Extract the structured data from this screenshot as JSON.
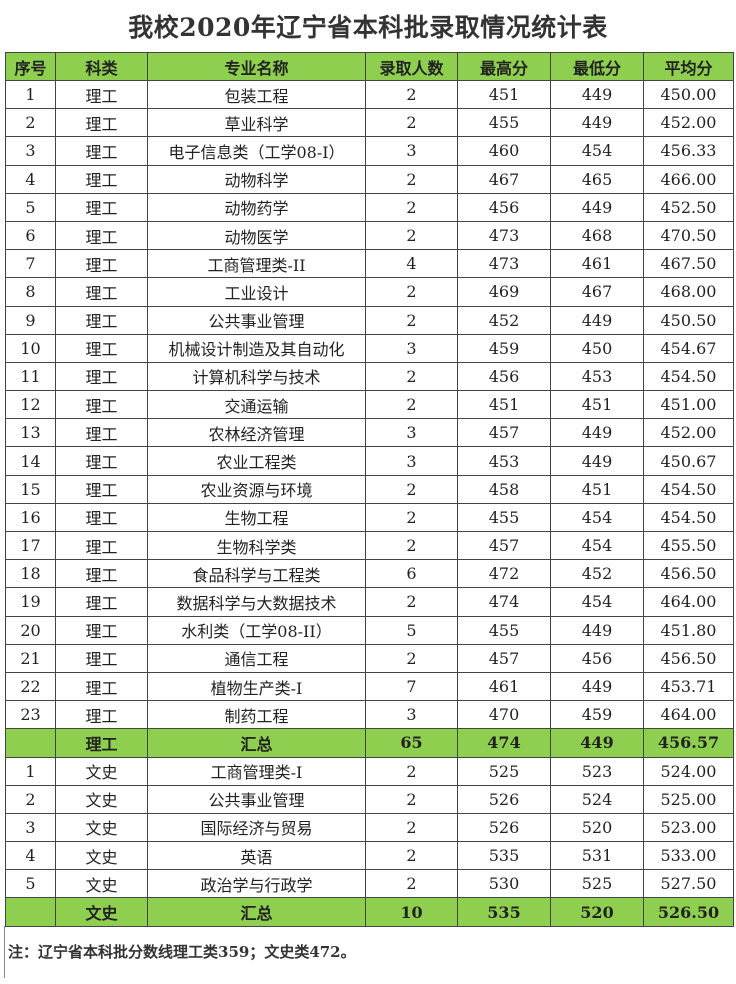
{
  "title": "我校2020年辽宁省本科批录取情况统计表",
  "colors": {
    "header_bg": "#8fcf4f",
    "summary_bg": "#8fcf4f"
  },
  "columns": [
    "序号",
    "科类",
    "专业名称",
    "录取人数",
    "最高分",
    "最低分",
    "平均分"
  ],
  "rows": [
    {
      "no": "1",
      "cat": "理工",
      "major": "包装工程",
      "count": "2",
      "max": "451",
      "min": "449",
      "avg": "450.00"
    },
    {
      "no": "2",
      "cat": "理工",
      "major": "草业科学",
      "count": "2",
      "max": "455",
      "min": "449",
      "avg": "452.00"
    },
    {
      "no": "3",
      "cat": "理工",
      "major": "电子信息类（工学08-I）",
      "count": "3",
      "max": "460",
      "min": "454",
      "avg": "456.33"
    },
    {
      "no": "4",
      "cat": "理工",
      "major": "动物科学",
      "count": "2",
      "max": "467",
      "min": "465",
      "avg": "466.00"
    },
    {
      "no": "5",
      "cat": "理工",
      "major": "动物药学",
      "count": "2",
      "max": "456",
      "min": "449",
      "avg": "452.50"
    },
    {
      "no": "6",
      "cat": "理工",
      "major": "动物医学",
      "count": "2",
      "max": "473",
      "min": "468",
      "avg": "470.50"
    },
    {
      "no": "7",
      "cat": "理工",
      "major": "工商管理类-II",
      "count": "4",
      "max": "473",
      "min": "461",
      "avg": "467.50"
    },
    {
      "no": "8",
      "cat": "理工",
      "major": "工业设计",
      "count": "2",
      "max": "469",
      "min": "467",
      "avg": "468.00"
    },
    {
      "no": "9",
      "cat": "理工",
      "major": "公共事业管理",
      "count": "2",
      "max": "452",
      "min": "449",
      "avg": "450.50"
    },
    {
      "no": "10",
      "cat": "理工",
      "major": "机械设计制造及其自动化",
      "count": "3",
      "max": "459",
      "min": "450",
      "avg": "454.67"
    },
    {
      "no": "11",
      "cat": "理工",
      "major": "计算机科学与技术",
      "count": "2",
      "max": "456",
      "min": "453",
      "avg": "454.50"
    },
    {
      "no": "12",
      "cat": "理工",
      "major": "交通运输",
      "count": "2",
      "max": "451",
      "min": "451",
      "avg": "451.00"
    },
    {
      "no": "13",
      "cat": "理工",
      "major": "农林经济管理",
      "count": "3",
      "max": "457",
      "min": "449",
      "avg": "452.00"
    },
    {
      "no": "14",
      "cat": "理工",
      "major": "农业工程类",
      "count": "3",
      "max": "453",
      "min": "449",
      "avg": "450.67"
    },
    {
      "no": "15",
      "cat": "理工",
      "major": "农业资源与环境",
      "count": "2",
      "max": "458",
      "min": "451",
      "avg": "454.50"
    },
    {
      "no": "16",
      "cat": "理工",
      "major": "生物工程",
      "count": "2",
      "max": "455",
      "min": "454",
      "avg": "454.50"
    },
    {
      "no": "17",
      "cat": "理工",
      "major": "生物科学类",
      "count": "2",
      "max": "457",
      "min": "454",
      "avg": "455.50"
    },
    {
      "no": "18",
      "cat": "理工",
      "major": "食品科学与工程类",
      "count": "6",
      "max": "472",
      "min": "452",
      "avg": "456.50"
    },
    {
      "no": "19",
      "cat": "理工",
      "major": "数据科学与大数据技术",
      "count": "2",
      "max": "474",
      "min": "454",
      "avg": "464.00"
    },
    {
      "no": "20",
      "cat": "理工",
      "major": "水利类（工学08-II）",
      "count": "5",
      "max": "455",
      "min": "449",
      "avg": "451.80"
    },
    {
      "no": "21",
      "cat": "理工",
      "major": "通信工程",
      "count": "2",
      "max": "457",
      "min": "456",
      "avg": "456.50"
    },
    {
      "no": "22",
      "cat": "理工",
      "major": "植物生产类-I",
      "count": "7",
      "max": "461",
      "min": "449",
      "avg": "453.71"
    },
    {
      "no": "23",
      "cat": "理工",
      "major": "制药工程",
      "count": "3",
      "max": "470",
      "min": "459",
      "avg": "464.00"
    },
    {
      "summary": true,
      "no": "",
      "cat": "理工",
      "major": "汇总",
      "count": "65",
      "max": "474",
      "min": "449",
      "avg": "456.57"
    },
    {
      "no": "1",
      "cat": "文史",
      "major": "工商管理类-I",
      "count": "2",
      "max": "525",
      "min": "523",
      "avg": "524.00"
    },
    {
      "no": "2",
      "cat": "文史",
      "major": "公共事业管理",
      "count": "2",
      "max": "526",
      "min": "524",
      "avg": "525.00"
    },
    {
      "no": "3",
      "cat": "文史",
      "major": "国际经济与贸易",
      "count": "2",
      "max": "526",
      "min": "520",
      "avg": "523.00"
    },
    {
      "no": "4",
      "cat": "文史",
      "major": "英语",
      "count": "2",
      "max": "535",
      "min": "531",
      "avg": "533.00"
    },
    {
      "no": "5",
      "cat": "文史",
      "major": "政治学与行政学",
      "count": "2",
      "max": "530",
      "min": "525",
      "avg": "527.50"
    },
    {
      "summary": true,
      "no": "",
      "cat": "文史",
      "major": "汇总",
      "count": "10",
      "max": "535",
      "min": "520",
      "avg": "526.50"
    }
  ],
  "note": "注：辽宁省本科批分数线理工类359；文史类472。"
}
